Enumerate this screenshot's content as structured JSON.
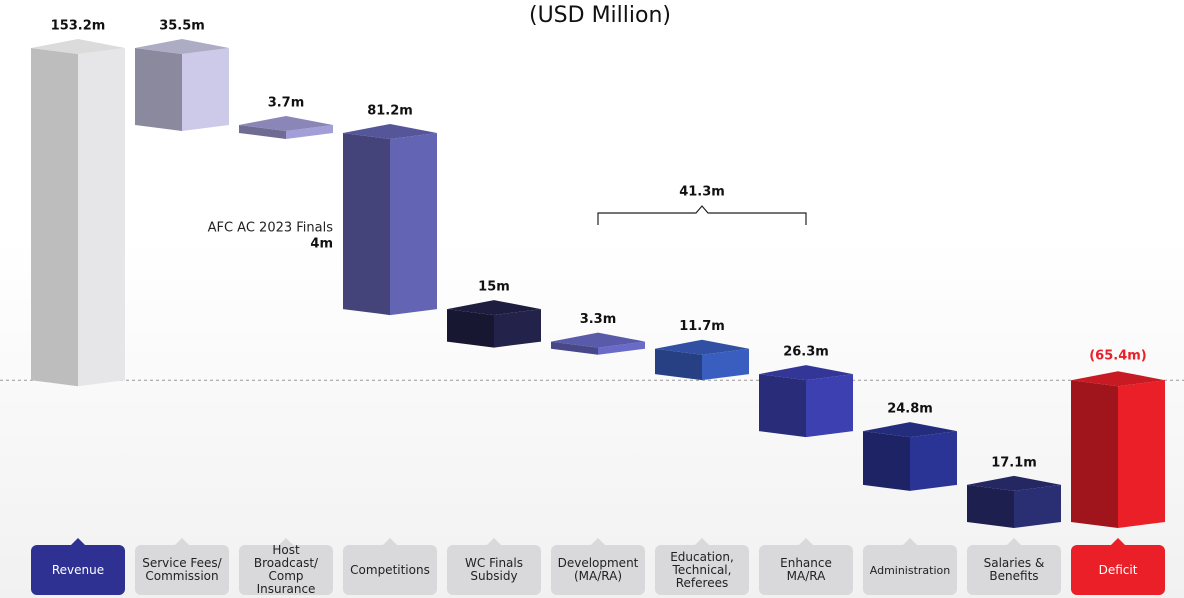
{
  "chart_data": {
    "type": "waterfall",
    "subtitle": "(USD Million)",
    "categories": [
      "Revenue",
      "Service Fees/\nCommission",
      "Host Broadcast/\nComp Insurance",
      "Competitions",
      "WC Finals\nSubsidy",
      "Development\n(MA/RA)",
      "Education,\nTechnical,\nReferees",
      "Enhance\nMA/RA",
      "Administration",
      "Salaries &\nBenefits",
      "Deficit"
    ],
    "values": [
      153.2,
      35.5,
      3.7,
      81.2,
      15,
      3.3,
      11.7,
      26.3,
      24.8,
      17.1,
      -65.4
    ],
    "value_labels": [
      "153.2m",
      "35.5m",
      "3.7m",
      "81.2m",
      "15m",
      "3.3m",
      "11.7m",
      "26.3m",
      "24.8m",
      "17.1m",
      "(65.4m)"
    ],
    "colors": [
      "#e6e6e8",
      "#cccae8",
      "#a29fd8",
      "#6464b4",
      "#22224a",
      "#6a6ac8",
      "#3a5ec0",
      "#3c40b0",
      "#2a3494",
      "#2a2e72",
      "#ea1f28"
    ],
    "annotations": [
      {
        "text": "AFC AC 2023 Finals",
        "value_label": "4m"
      },
      {
        "text": "41.3m"
      }
    ]
  }
}
